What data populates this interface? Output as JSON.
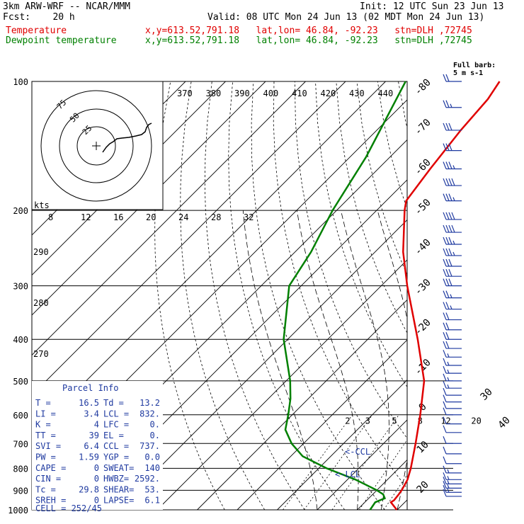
{
  "header": {
    "model": "3km ARW-WRF -- NCAR/MMM",
    "init": "Init: 12 UTC Sun 23 Jun 13",
    "fcst": "Fcst:    20 h",
    "valid": "Valid: 08 UTC Mon 24 Jun 13 (02 MDT Mon 24 Jun 13)",
    "temp_label": "Temperature",
    "temp_info": "x,y=613.52,791.18   lat,lon= 46.84, -92.23   stn=DLH ,72745",
    "dew_label": "Dewpoint temperature",
    "dew_info": "x,y=613.52,791.18   lat,lon= 46.84, -92.23   stn=DLH ,72745"
  },
  "colors": {
    "temperature": "#e00000",
    "dewpoint": "#008000",
    "barbs": "#1f3aa0",
    "grid": "#000000"
  },
  "chart_data": {
    "type": "line",
    "title": "",
    "pressure_labels": [
      "100",
      "200",
      "300",
      "400",
      "500",
      "600",
      "700",
      "800",
      "900",
      "1000"
    ],
    "pressure_levels": [
      100,
      200,
      300,
      400,
      500,
      600,
      700,
      800,
      900,
      1000
    ],
    "temp_tick_labels": [
      "-80",
      "-70",
      "-60",
      "-50",
      "-40",
      "-30",
      "-20",
      "-10",
      "0",
      "10",
      "20",
      "30",
      "40"
    ],
    "theta_labels": [
      "370",
      "380",
      "390",
      "400",
      "410",
      "420",
      "430",
      "440"
    ],
    "theta_left_labels": [
      "290",
      "280",
      "270"
    ],
    "mixing_ratio_labels": [
      "2",
      "3",
      "5",
      "8",
      "12",
      "20"
    ],
    "kts_label": "kts",
    "kts_ticks": [
      "8",
      "12",
      "16",
      "20",
      "24",
      "28",
      "32"
    ],
    "hodo_rings": [
      "25",
      "50",
      "75"
    ],
    "barb_legend": "Full barb:\n5 m s-1",
    "ccl_label": "<-CCL",
    "lcl_label": "<-LCL",
    "series": [
      {
        "name": "Temperature",
        "profile": [
          [
            1000,
            19.9
          ],
          [
            960,
            16.5
          ],
          [
            950,
            16.8
          ],
          [
            920,
            16.5
          ],
          [
            900,
            16.2
          ],
          [
            850,
            15.0
          ],
          [
            800,
            13.0
          ],
          [
            700,
            8.0
          ],
          [
            600,
            2.0
          ],
          [
            500,
            -5.5
          ],
          [
            400,
            -17.5
          ],
          [
            300,
            -33.5
          ],
          [
            250,
            -43.0
          ],
          [
            200,
            -53.0
          ],
          [
            190,
            -55.0
          ],
          [
            160,
            -57.0
          ],
          [
            130,
            -59.0
          ],
          [
            110,
            -60.0
          ],
          [
            100,
            -61.5
          ]
        ]
      },
      {
        "name": "Dewpoint temperature",
        "profile": [
          [
            1000,
            13.2
          ],
          [
            960,
            12.6
          ],
          [
            940,
            14.0
          ],
          [
            920,
            12.6
          ],
          [
            900,
            10.0
          ],
          [
            850,
            2.0
          ],
          [
            800,
            -8.0
          ],
          [
            750,
            -17.0
          ],
          [
            700,
            -23.0
          ],
          [
            650,
            -28.0
          ],
          [
            600,
            -31.0
          ],
          [
            550,
            -34.5
          ],
          [
            500,
            -39.0
          ],
          [
            400,
            -51.0
          ],
          [
            300,
            -63.0
          ],
          [
            250,
            -66.0
          ],
          [
            200,
            -71.0
          ],
          [
            150,
            -76.0
          ],
          [
            100,
            -85.0
          ]
        ]
      }
    ],
    "wind_barbs": [
      {
        "p": 100,
        "spd": 20,
        "dir": 270
      },
      {
        "p": 115,
        "spd": 25,
        "dir": 270
      },
      {
        "p": 130,
        "spd": 30,
        "dir": 270
      },
      {
        "p": 145,
        "spd": 30,
        "dir": 270
      },
      {
        "p": 160,
        "spd": 35,
        "dir": 270
      },
      {
        "p": 175,
        "spd": 40,
        "dir": 270
      },
      {
        "p": 190,
        "spd": 35,
        "dir": 270
      },
      {
        "p": 210,
        "spd": 40,
        "dir": 270
      },
      {
        "p": 225,
        "spd": 40,
        "dir": 270
      },
      {
        "p": 240,
        "spd": 35,
        "dir": 270
      },
      {
        "p": 255,
        "spd": 35,
        "dir": 270
      },
      {
        "p": 270,
        "spd": 30,
        "dir": 270
      },
      {
        "p": 285,
        "spd": 30,
        "dir": 270
      },
      {
        "p": 300,
        "spd": 30,
        "dir": 270
      },
      {
        "p": 320,
        "spd": 25,
        "dir": 270
      },
      {
        "p": 340,
        "spd": 25,
        "dir": 270
      },
      {
        "p": 360,
        "spd": 20,
        "dir": 270
      },
      {
        "p": 380,
        "spd": 20,
        "dir": 270
      },
      {
        "p": 400,
        "spd": 20,
        "dir": 270
      },
      {
        "p": 420,
        "spd": 20,
        "dir": 270
      },
      {
        "p": 440,
        "spd": 15,
        "dir": 270
      },
      {
        "p": 460,
        "spd": 15,
        "dir": 270
      },
      {
        "p": 480,
        "spd": 15,
        "dir": 270
      },
      {
        "p": 500,
        "spd": 15,
        "dir": 270
      },
      {
        "p": 520,
        "spd": 15,
        "dir": 270
      },
      {
        "p": 540,
        "spd": 10,
        "dir": 270
      },
      {
        "p": 560,
        "spd": 10,
        "dir": 270
      },
      {
        "p": 580,
        "spd": 10,
        "dir": 270
      },
      {
        "p": 600,
        "spd": 10,
        "dir": 270
      },
      {
        "p": 630,
        "spd": 10,
        "dir": 270
      },
      {
        "p": 660,
        "spd": 10,
        "dir": 270
      },
      {
        "p": 700,
        "spd": 10,
        "dir": 270
      },
      {
        "p": 740,
        "spd": 10,
        "dir": 270
      },
      {
        "p": 780,
        "spd": 10,
        "dir": 270
      },
      {
        "p": 820,
        "spd": 15,
        "dir": 200
      },
      {
        "p": 850,
        "spd": 15,
        "dir": 190
      },
      {
        "p": 870,
        "spd": 15,
        "dir": 180
      },
      {
        "p": 890,
        "spd": 15,
        "dir": 180
      },
      {
        "p": 910,
        "spd": 15,
        "dir": 180
      },
      {
        "p": 930,
        "spd": 10,
        "dir": 180
      }
    ]
  },
  "parcel": {
    "title": "Parcel Info",
    "rows": [
      [
        "T   =",
        "16.5",
        "Td  =",
        "13.2"
      ],
      [
        "LI  =",
        "3.4",
        "LCL =",
        "832."
      ],
      [
        "K   =",
        "4",
        "LFC =",
        "0."
      ],
      [
        "TT  =",
        "39",
        "EL  =",
        "0."
      ],
      [
        "SVI =",
        "6.4",
        "CCL =",
        "737."
      ],
      [
        "PW  =",
        "1.59",
        "YGP =",
        "0.0"
      ],
      [
        "CAPE =",
        "0",
        "SWEAT=",
        "140"
      ],
      [
        "CIN  =",
        "0",
        "HWBZ=",
        "2592."
      ],
      [
        "Tc  =",
        "29.8",
        "SHEAR=",
        "53."
      ],
      [
        "SREH =",
        "0",
        "LAPSE=",
        "6.1"
      ]
    ],
    "cell": "CELL = 252/45"
  }
}
